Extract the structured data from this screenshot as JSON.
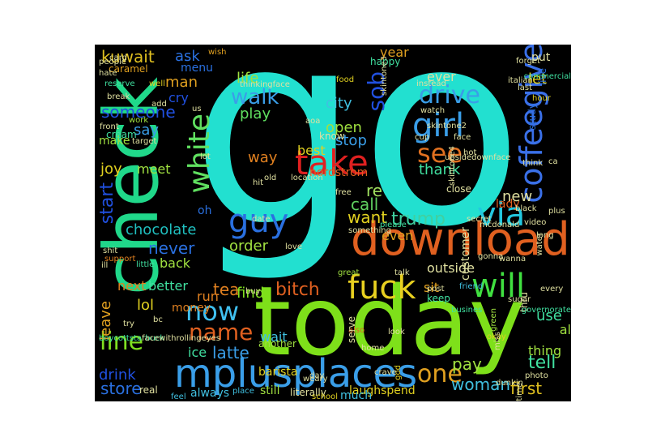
{
  "wordcloud": {
    "background": "#000000",
    "words": [
      {
        "text": "go",
        "color": "#22e0d0"
      },
      {
        "text": "today",
        "color": "#7ee01a"
      },
      {
        "text": "check",
        "color": "#20d88a"
      },
      {
        "text": "download",
        "color": "#e06020"
      },
      {
        "text": "mplusplaces",
        "color": "#3a9ee8"
      },
      {
        "text": "take",
        "color": "#e02020"
      },
      {
        "text": "fuck",
        "color": "#e8d020"
      },
      {
        "text": "girl",
        "color": "#3a9ee8"
      },
      {
        "text": "guy",
        "color": "#2a70e0"
      },
      {
        "text": "will",
        "color": "#40e040"
      },
      {
        "text": "via",
        "color": "#22c8e0"
      },
      {
        "text": "coffeegive",
        "color": "#3a70e8"
      },
      {
        "text": "white",
        "color": "#60e060"
      },
      {
        "text": "now",
        "color": "#40c0f0"
      },
      {
        "text": "name",
        "color": "#e06020"
      },
      {
        "text": "line",
        "color": "#80e020"
      },
      {
        "text": "one",
        "color": "#e0a020"
      },
      {
        "text": "see",
        "color": "#e07020"
      },
      {
        "text": "drive",
        "color": "#3a9ee8"
      },
      {
        "text": "sob",
        "color": "#2050e0"
      },
      {
        "text": "walk",
        "color": "#3a9ee8"
      },
      {
        "text": "trump",
        "color": "#40d0a0"
      },
      {
        "text": "latte",
        "color": "#3a9ee8"
      },
      {
        "text": "tell",
        "color": "#40e0a0"
      },
      {
        "text": "woman",
        "color": "#40c0e0"
      },
      {
        "text": "pay",
        "color": "#a0e040"
      },
      {
        "text": "first",
        "color": "#e0c020"
      },
      {
        "text": "bitch",
        "color": "#e06020"
      },
      {
        "text": "want",
        "color": "#e0d020"
      },
      {
        "text": "re",
        "color": "#a0e060"
      },
      {
        "text": "call",
        "color": "#60d060"
      },
      {
        "text": "order",
        "color": "#a0e040"
      },
      {
        "text": "never",
        "color": "#2a70e0"
      },
      {
        "text": "start",
        "color": "#2050e0"
      },
      {
        "text": "chocolate",
        "color": "#20c0c0"
      },
      {
        "text": "kuwait",
        "color": "#e0c020"
      },
      {
        "text": "ask",
        "color": "#2a70e0"
      },
      {
        "text": "man",
        "color": "#e0a020"
      },
      {
        "text": "life",
        "color": "#a0e040"
      },
      {
        "text": "play",
        "color": "#60e060"
      },
      {
        "text": "someone",
        "color": "#2050e0"
      },
      {
        "text": "say",
        "color": "#3a9ee8"
      },
      {
        "text": "joy",
        "color": "#e0d020"
      },
      {
        "text": "meet",
        "color": "#a0e040"
      },
      {
        "text": "city",
        "color": "#40c0e0"
      },
      {
        "text": "open",
        "color": "#a0e040"
      },
      {
        "text": "stop",
        "color": "#3a9ee8"
      },
      {
        "text": "thank",
        "color": "#40e0a0"
      },
      {
        "text": "way",
        "color": "#e08020"
      },
      {
        "text": "new",
        "color": "#e0e0a0"
      },
      {
        "text": "tea",
        "color": "#e08020"
      },
      {
        "text": "find",
        "color": "#80e020"
      },
      {
        "text": "sit",
        "color": "#e0a020"
      },
      {
        "text": "drink",
        "color": "#2050e0"
      },
      {
        "text": "store",
        "color": "#2a70e0"
      },
      {
        "text": "lol",
        "color": "#e0d020"
      },
      {
        "text": "ice",
        "color": "#40e0a0"
      },
      {
        "text": "leave",
        "color": "#e0a020"
      },
      {
        "text": "next",
        "color": "#e08020"
      },
      {
        "text": "better",
        "color": "#40e0a0"
      },
      {
        "text": "run",
        "color": "#e08020"
      },
      {
        "text": "back",
        "color": "#a0e040"
      },
      {
        "text": "use",
        "color": "#40e0a0"
      },
      {
        "text": "thing",
        "color": "#a0e040"
      },
      {
        "text": "al",
        "color": "#a0e040"
      },
      {
        "text": "let",
        "color": "#e0d020"
      },
      {
        "text": "best",
        "color": "#e0d020"
      },
      {
        "text": "even",
        "color": "#e0a020"
      },
      {
        "text": "outside",
        "color": "#e0e0a0"
      },
      {
        "text": "wait",
        "color": "#40c0e0"
      },
      {
        "text": "still",
        "color": "#a0e040"
      },
      {
        "text": "laughspend",
        "color": "#e0d020"
      },
      {
        "text": "always",
        "color": "#40c0e0"
      },
      {
        "text": "much",
        "color": "#40c0e0"
      },
      {
        "text": "ever",
        "color": "#e0e0a0"
      },
      {
        "text": "cry",
        "color": "#2050e0"
      },
      {
        "text": "menu",
        "color": "#2a70e0"
      },
      {
        "text": "make",
        "color": "#a0e040"
      },
      {
        "text": "money",
        "color": "#e08020"
      },
      {
        "text": "year",
        "color": "#e0a020"
      },
      {
        "text": "lady",
        "color": "#e06020"
      },
      {
        "text": "nordstrom",
        "color": "#e06020"
      },
      {
        "text": "know",
        "color": "#e0e0a0"
      },
      {
        "text": "happy",
        "color": "#40e0a0"
      },
      {
        "text": "put",
        "color": "#e0e0a0"
      },
      {
        "text": "live",
        "color": "#2a70e0"
      },
      {
        "text": "hour",
        "color": "#e0d020"
      },
      {
        "text": "study",
        "color": "#2a70e0"
      },
      {
        "text": "customer",
        "color": "#e0e0a0"
      },
      {
        "text": "oh",
        "color": "#2a70e0"
      },
      {
        "text": "cream",
        "color": "#40e0a0"
      },
      {
        "text": "caramel",
        "color": "#e0a020"
      },
      {
        "text": "well",
        "color": "#e0d020"
      },
      {
        "text": "work",
        "color": "#a0e040"
      },
      {
        "text": "reserve",
        "color": "#40e0a0"
      },
      {
        "text": "people",
        "color": "#e0e0a0"
      },
      {
        "text": "hate",
        "color": "#e0e0a0"
      },
      {
        "text": "card",
        "color": "#e0e0a0"
      },
      {
        "text": "wish",
        "color": "#e0a020"
      },
      {
        "text": "food",
        "color": "#e0d020"
      },
      {
        "text": "instead",
        "color": "#e0e0a0"
      },
      {
        "text": "watch",
        "color": "#e0e0a0"
      },
      {
        "text": "close",
        "color": "#e0e0a0"
      },
      {
        "text": "please",
        "color": "#40e0a0"
      },
      {
        "text": "secret",
        "color": "#e0e0a0"
      },
      {
        "text": "mcdonald",
        "color": "#e0e0a0"
      },
      {
        "text": "something",
        "color": "#e0e0a0"
      },
      {
        "text": "date",
        "color": "#e0e0a0"
      },
      {
        "text": "great",
        "color": "#a0e040"
      },
      {
        "text": "talk",
        "color": "#e0e0a0"
      },
      {
        "text": "keep",
        "color": "#40e0a0"
      },
      {
        "text": "friend",
        "color": "#40c0e0"
      },
      {
        "text": "thru",
        "color": "#e0e0a0"
      },
      {
        "text": "governorate",
        "color": "#40e0a0"
      },
      {
        "text": "every",
        "color": "#e0e0a0"
      },
      {
        "text": "green",
        "color": "#a0e040"
      },
      {
        "text": "home",
        "color": "#e0e0a0"
      },
      {
        "text": "look",
        "color": "#e0e0a0"
      },
      {
        "text": "also",
        "color": "#e06020"
      },
      {
        "text": "another",
        "color": "#a0e040"
      },
      {
        "text": "barista",
        "color": "#e0d020"
      },
      {
        "text": "weary",
        "color": "#e0e0a0"
      },
      {
        "text": "god",
        "color": "#e0d020"
      },
      {
        "text": "post",
        "color": "#e0e0a0"
      },
      {
        "text": "busines",
        "color": "#40e0a0"
      },
      {
        "text": "okay",
        "color": "#e0d020"
      },
      {
        "text": "dunkin",
        "color": "#e0e0a0"
      },
      {
        "text": "miss",
        "color": "#e0e0a0"
      },
      {
        "text": "photo",
        "color": "#e0e0a0"
      },
      {
        "text": "time",
        "color": "#e0e0a0"
      },
      {
        "text": "literally",
        "color": "#e0e0a0"
      },
      {
        "text": "place",
        "color": "#40c0e0"
      },
      {
        "text": "real",
        "color": "#e0e0a0"
      },
      {
        "text": "feel",
        "color": "#40c0e0"
      },
      {
        "text": "school",
        "color": "#e0d020"
      },
      {
        "text": "day",
        "color": "#e0e0a0"
      },
      {
        "text": "crave",
        "color": "#e0e0a0"
      },
      {
        "text": "buy",
        "color": "#e0e0a0"
      },
      {
        "text": "little",
        "color": "#40e0a0"
      },
      {
        "text": "support",
        "color": "#e08020"
      },
      {
        "text": "shit",
        "color": "#e0e0a0"
      },
      {
        "text": "ill",
        "color": "#e0e0a0"
      },
      {
        "text": "bc",
        "color": "#e0e0a0"
      },
      {
        "text": "try",
        "color": "#e0e0a0"
      },
      {
        "text": "lot",
        "color": "#e0e0a0"
      },
      {
        "text": "target",
        "color": "#e0e0a0"
      },
      {
        "text": "break",
        "color": "#e0e0a0"
      },
      {
        "text": "front",
        "color": "#e0e0a0"
      },
      {
        "text": "us",
        "color": "#e0e0a0"
      },
      {
        "text": "add",
        "color": "#e0e0a0"
      },
      {
        "text": "skintone2",
        "color": "#e0e0a0"
      },
      {
        "text": "skintone4",
        "color": "#e0e0a0"
      },
      {
        "text": "skintone3",
        "color": "#e0e0a0"
      },
      {
        "text": "commercial",
        "color": "#40e0a0"
      },
      {
        "text": "italian",
        "color": "#e0e0a0"
      },
      {
        "text": "forget",
        "color": "#e0e0a0"
      },
      {
        "text": "last",
        "color": "#e0e0a0"
      },
      {
        "text": "think",
        "color": "#e0e0a0"
      },
      {
        "text": "long",
        "color": "#e0e0a0"
      },
      {
        "text": "free",
        "color": "#e0e0a0"
      },
      {
        "text": "hot",
        "color": "#e0e0a0"
      },
      {
        "text": "cup",
        "color": "#e0e0a0"
      },
      {
        "text": "video",
        "color": "#e0e0a0"
      },
      {
        "text": "face",
        "color": "#e0e0a0"
      },
      {
        "text": "hit",
        "color": "#e0e0a0"
      },
      {
        "text": "old",
        "color": "#e0e0a0"
      },
      {
        "text": "location",
        "color": "#e0e0a0"
      },
      {
        "text": "love",
        "color": "#e0e0a0"
      },
      {
        "text": "serve",
        "color": "#e0e0a0"
      },
      {
        "text": "water",
        "color": "#e0e0a0"
      },
      {
        "text": "boycottstarbuck",
        "color": "#40e0a0"
      },
      {
        "text": "facewithrollingeyes",
        "color": "#e0e0a0"
      },
      {
        "text": "thinkingface",
        "color": "#e0e0a0"
      },
      {
        "text": "upsidedownface",
        "color": "#e0e0a0"
      },
      {
        "text": "aoa",
        "color": "#e0e0a0"
      },
      {
        "text": "ca",
        "color": "#e0e0a0"
      },
      {
        "text": "plus",
        "color": "#e0e0a0"
      },
      {
        "text": "black",
        "color": "#e0e0a0"
      },
      {
        "text": "wanna",
        "color": "#e0e0a0"
      },
      {
        "text": "gonna",
        "color": "#e0e0a0"
      },
      {
        "text": "sugar",
        "color": "#e0e0a0"
      }
    ]
  }
}
